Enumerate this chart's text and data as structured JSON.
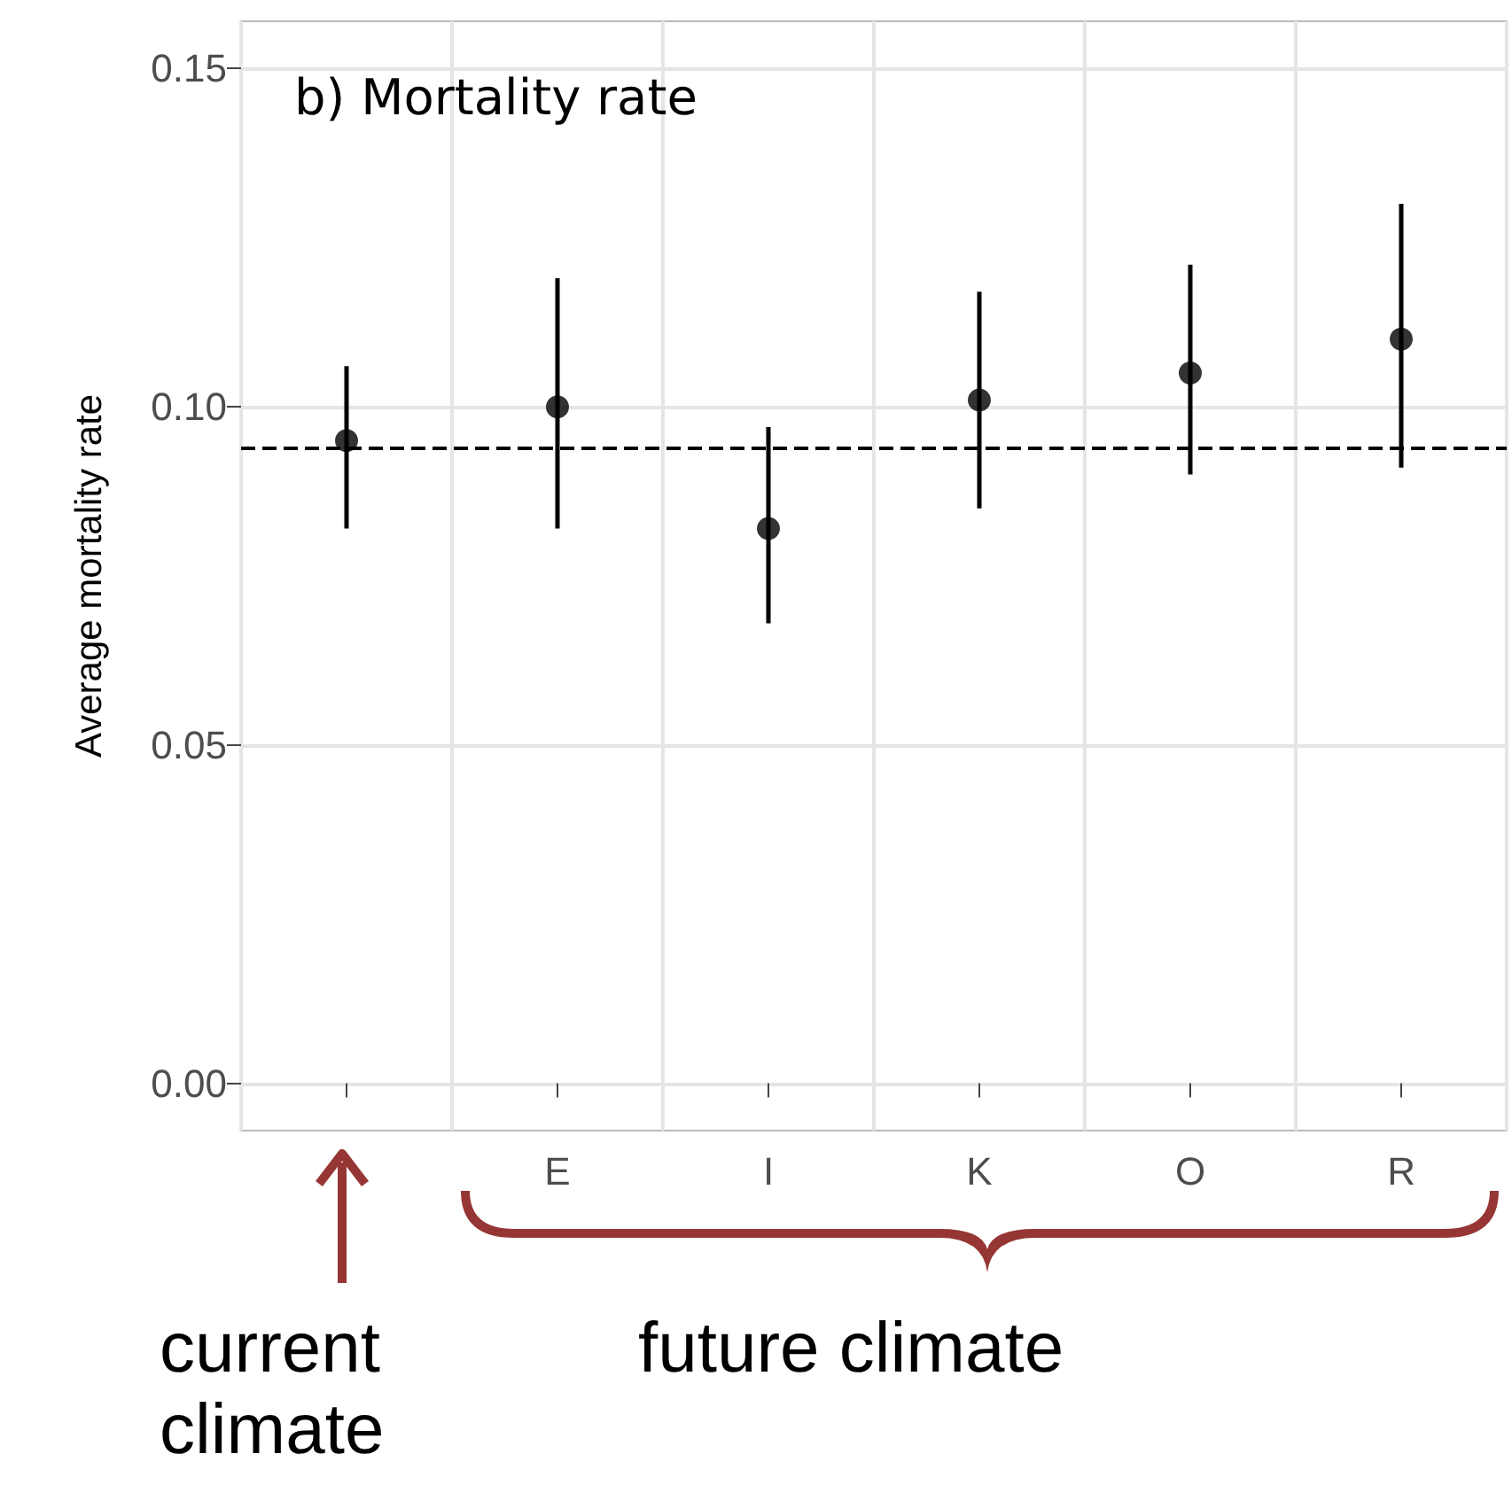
{
  "chart_data": {
    "type": "scatter",
    "title": "b) Mortality rate",
    "ylabel": "Average mortality rate",
    "categories": [
      null,
      "E",
      "I",
      "K",
      "O",
      "R"
    ],
    "values": [
      0.095,
      0.1,
      0.082,
      0.101,
      0.105,
      0.11
    ],
    "errors": [
      [
        0.082,
        0.106
      ],
      [
        0.082,
        0.119
      ],
      [
        0.068,
        0.097
      ],
      [
        0.085,
        0.117
      ],
      [
        0.09,
        0.121
      ],
      [
        0.091,
        0.13
      ]
    ],
    "color": "#000000",
    "marker": "circle",
    "ylim": [
      -0.007,
      0.157
    ],
    "yticks": [
      {
        "value": 0,
        "label": "0.00"
      },
      {
        "value": 0.05,
        "label": "0.05"
      },
      {
        "value": 0.1,
        "label": "0.10"
      },
      {
        "value": 0.15,
        "label": "0.15"
      }
    ],
    "ref_lines": [
      {
        "axis": "y",
        "value": 0.094,
        "line_style": "dashed",
        "color": "#000000"
      }
    ],
    "grid": true,
    "annotations": [
      "current climate",
      "future climate"
    ]
  }
}
